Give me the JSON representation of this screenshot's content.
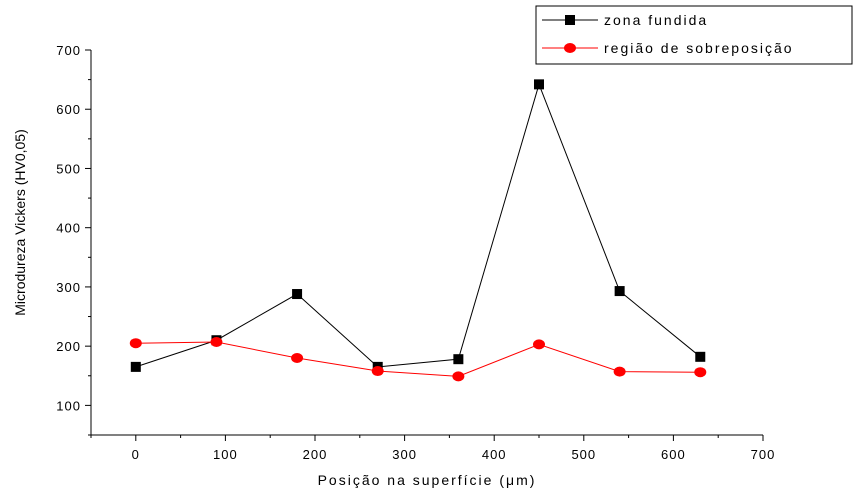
{
  "chart_data": {
    "type": "line",
    "x": [
      0,
      90,
      180,
      270,
      360,
      450,
      540,
      630
    ],
    "series": [
      {
        "name": "zona fundida",
        "values": [
          165,
          210,
          288,
          165,
          178,
          642,
          293,
          182
        ],
        "color": "#000000",
        "marker": "square"
      },
      {
        "name": "região de sobreposição",
        "values": [
          205,
          207,
          180,
          158,
          149,
          203,
          157,
          156
        ],
        "color": "#ff0000",
        "marker": "circle"
      }
    ],
    "xlabel": "Posição na superfície (μm)",
    "ylabel": "Microdureza Vickers (HV0,05)",
    "xlim": [
      -50,
      700
    ],
    "ylim": [
      50,
      700
    ],
    "xticks": [
      0,
      100,
      200,
      300,
      400,
      500,
      600,
      700
    ],
    "yticks": [
      100,
      200,
      300,
      400,
      500,
      600,
      700
    ],
    "grid": false,
    "legend_position": "top-right"
  }
}
